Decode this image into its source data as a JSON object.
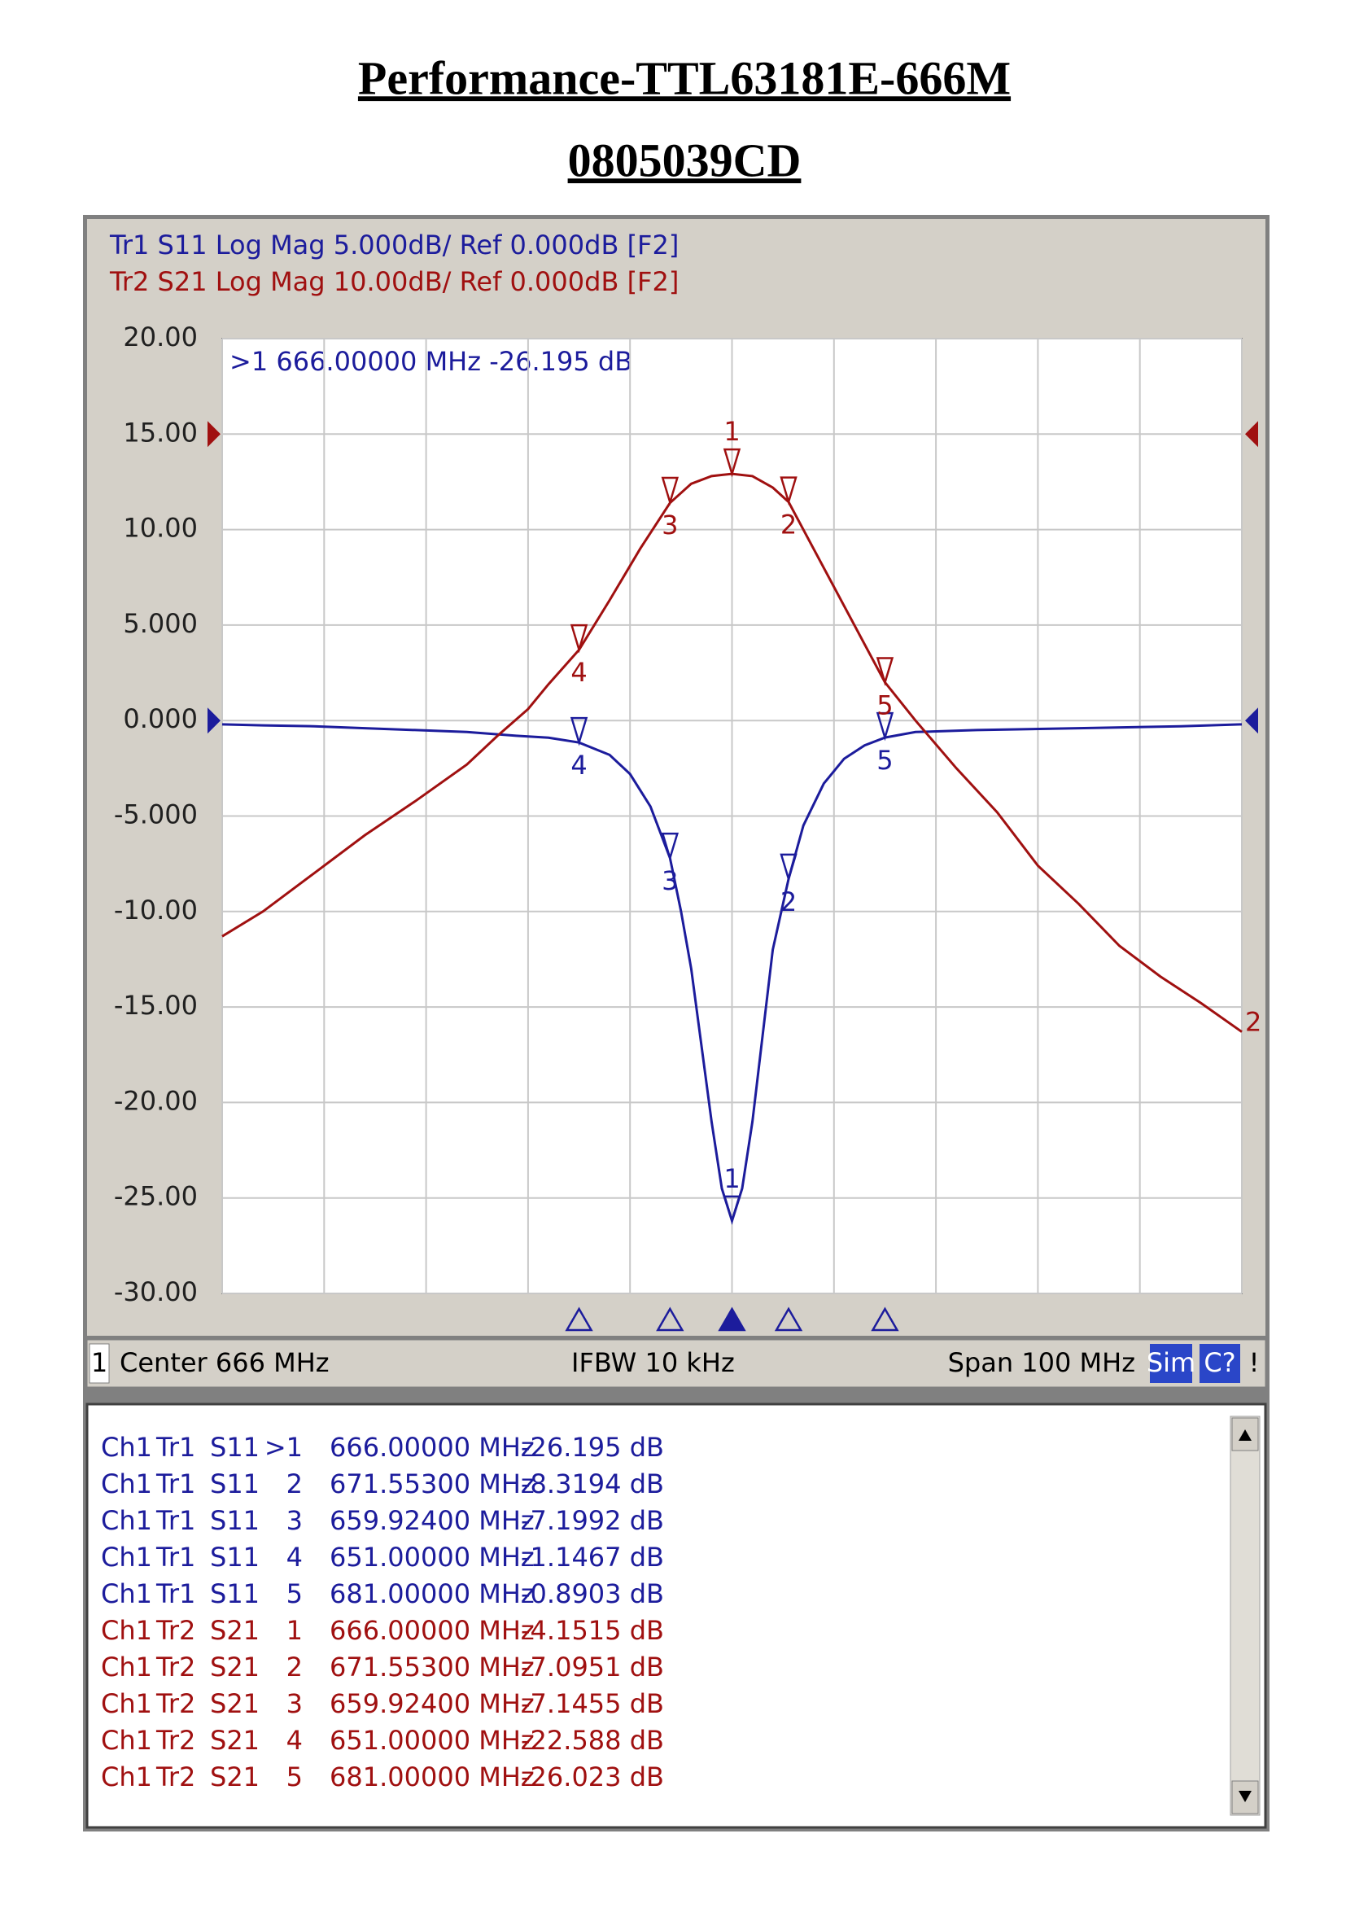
{
  "header": {
    "title": "Performance-TTL63181E-666M",
    "subtitle": "0805039CD"
  },
  "chart_data": {
    "type": "line",
    "trace_headers": [
      "Tr1 S11 Log Mag 5.000dB/ Ref 0.000dB [F2]",
      "Tr2 S21 Log Mag 10.00dB/ Ref 0.000dB [F2]"
    ],
    "marker_readout": ">1  666.00000 MHz -26.195 dB",
    "xlim": [
      616,
      716
    ],
    "xticks": [
      616,
      626,
      636,
      646,
      656,
      666,
      676,
      686,
      696,
      706,
      716
    ],
    "ylim": [
      -30,
      20
    ],
    "yticks": [
      {
        "value": 20,
        "label": "20.00"
      },
      {
        "value": 15,
        "label": "15.00"
      },
      {
        "value": 10,
        "label": "10.00"
      },
      {
        "value": 5,
        "label": "5.000"
      },
      {
        "value": 0,
        "label": "0.000"
      },
      {
        "value": -5,
        "label": "-5.000"
      },
      {
        "value": -10,
        "label": "-10.00"
      },
      {
        "value": -15,
        "label": "-15.00"
      },
      {
        "value": -20,
        "label": "-20.00"
      },
      {
        "value": -25,
        "label": "-25.00"
      },
      {
        "value": -30,
        "label": "-30.00"
      }
    ],
    "grid": true,
    "series": [
      {
        "name": "Tr1 S11",
        "color": "#1c1c9c",
        "ref_level": 0,
        "x": [
          616,
          620,
          625,
          630,
          635,
          640,
          645,
          648,
          651,
          654,
          656,
          658,
          659.92,
          661,
          662,
          663,
          664,
          665,
          666,
          667,
          668,
          669,
          670,
          671.55,
          673,
          675,
          677,
          679,
          681,
          684,
          690,
          700,
          710,
          716
        ],
        "values": [
          -0.2,
          -0.25,
          -0.3,
          -0.4,
          -0.5,
          -0.6,
          -0.8,
          -0.9,
          -1.15,
          -1.8,
          -2.8,
          -4.5,
          -7.2,
          -10,
          -13,
          -17,
          -21,
          -24.5,
          -26.2,
          -24.5,
          -21,
          -16.5,
          -12,
          -8.3,
          -5.5,
          -3.3,
          -2,
          -1.3,
          -0.89,
          -0.6,
          -0.5,
          -0.4,
          -0.3,
          -0.2
        ],
        "markers": [
          {
            "label": "1",
            "x": 666,
            "y": -26.2
          },
          {
            "label": "2",
            "x": 671.55,
            "y": -8.3
          },
          {
            "label": "3",
            "x": 659.92,
            "y": -7.2
          },
          {
            "label": "4",
            "x": 651,
            "y": -1.15
          },
          {
            "label": "5",
            "x": 681,
            "y": -0.89
          }
        ]
      },
      {
        "name": "Tr2 S21",
        "color": "#a01010",
        "ref_level": 15,
        "end_label": "2",
        "x": [
          616,
          620,
          625,
          630,
          635,
          640,
          643,
          646,
          648,
          651,
          654,
          657,
          659.92,
          662,
          664,
          666,
          668,
          670,
          671.55,
          674,
          677,
          679,
          681,
          684,
          688,
          692,
          696,
          700,
          704,
          708,
          712,
          716
        ],
        "values": [
          -11.3,
          -10,
          -8,
          -6,
          -4.2,
          -2.3,
          -0.8,
          0.6,
          1.9,
          3.7,
          6.3,
          9,
          11.4,
          12.4,
          12.8,
          12.92,
          12.8,
          12.2,
          11.45,
          9,
          6,
          4,
          2,
          0,
          -2.5,
          -4.8,
          -7.6,
          -9.6,
          -11.8,
          -13.4,
          -14.8,
          -16.3
        ],
        "markers": [
          {
            "label": "1",
            "x": 666,
            "y": 12.92
          },
          {
            "label": "2",
            "x": 671.55,
            "y": 11.45
          },
          {
            "label": "3",
            "x": 659.92,
            "y": 11.43
          },
          {
            "label": "4",
            "x": 651,
            "y": 3.71
          },
          {
            "label": "5",
            "x": 681,
            "y": 1.99
          }
        ]
      }
    ],
    "status": {
      "channel": "1",
      "center": "Center 666 MHz",
      "ifbw": "IFBW 10 kHz",
      "span": "Span 100 MHz",
      "sim": "Sim",
      "cal": "C?",
      "warn": "!"
    }
  },
  "marker_table": {
    "groups": [
      {
        "color": "#1c1c9c",
        "rows": [
          [
            "Ch1",
            "Tr1",
            "S11",
            ">1",
            "666.00000 MHz",
            "-26.195 dB"
          ],
          [
            "Ch1",
            "Tr1",
            "S11",
            "2",
            "671.55300 MHz",
            "-8.3194 dB"
          ],
          [
            "Ch1",
            "Tr1",
            "S11",
            "3",
            "659.92400 MHz",
            "-7.1992 dB"
          ],
          [
            "Ch1",
            "Tr1",
            "S11",
            "4",
            "651.00000 MHz",
            "-1.1467 dB"
          ],
          [
            "Ch1",
            "Tr1",
            "S11",
            "5",
            "681.00000 MHz",
            "-0.8903 dB"
          ]
        ]
      },
      {
        "color": "#a01010",
        "rows": [
          [
            "Ch1",
            "Tr2",
            "S21",
            "1",
            "666.00000 MHz",
            "-4.1515 dB"
          ],
          [
            "Ch1",
            "Tr2",
            "S21",
            "2",
            "671.55300 MHz",
            "-7.0951 dB"
          ],
          [
            "Ch1",
            "Tr2",
            "S21",
            "3",
            "659.92400 MHz",
            "-7.1455 dB"
          ],
          [
            "Ch1",
            "Tr2",
            "S21",
            "4",
            "651.00000 MHz",
            "-22.588 dB"
          ],
          [
            "Ch1",
            "Tr2",
            "S21",
            "5",
            "681.00000 MHz",
            "-26.023 dB"
          ]
        ]
      }
    ]
  }
}
